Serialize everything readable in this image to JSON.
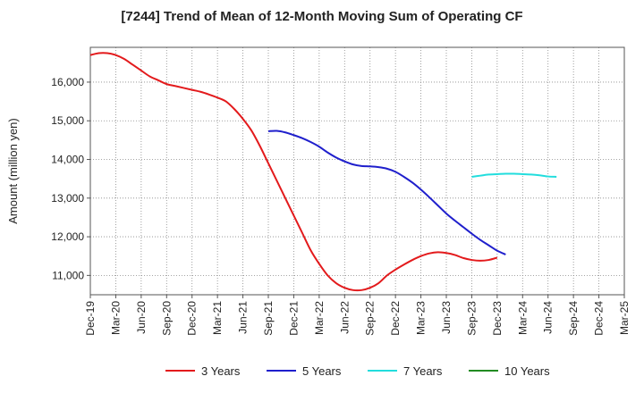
{
  "chart_data": {
    "type": "line",
    "title": "[7244]  Trend of Mean of 12-Month Moving Sum of Operating CF",
    "xlabel": "",
    "ylabel": "Amount (million yen)",
    "ylim": [
      10500,
      16900
    ],
    "yticks": [
      11000,
      12000,
      13000,
      14000,
      15000,
      16000
    ],
    "ytick_labels": [
      "11,000",
      "12,000",
      "13,000",
      "14,000",
      "15,000",
      "16,000"
    ],
    "xtick_labels": [
      "Dec-19",
      "Mar-20",
      "Jun-20",
      "Sep-20",
      "Dec-20",
      "Mar-21",
      "Jun-21",
      "Sep-21",
      "Dec-21",
      "Mar-22",
      "Jun-22",
      "Sep-22",
      "Dec-22",
      "Mar-23",
      "Jun-23",
      "Sep-23",
      "Dec-23",
      "Mar-24",
      "Jun-24",
      "Sep-24",
      "Dec-24",
      "Mar-25"
    ],
    "grid": true,
    "series": [
      {
        "name": "3 Years",
        "color": "#e31a1c",
        "start_index": 0,
        "values": [
          16700,
          16750,
          16750,
          16700,
          16600,
          16450,
          16300,
          16150,
          16050,
          15950,
          15900,
          15850,
          15800,
          15750,
          15680,
          15600,
          15500,
          15300,
          15050,
          14750,
          14350,
          13900,
          13450,
          13000,
          12550,
          12100,
          11650,
          11300,
          11000,
          10800,
          10680,
          10620,
          10620,
          10680,
          10800,
          11000,
          11150,
          11280,
          11400,
          11500,
          11570,
          11600,
          11580,
          11530,
          11450,
          11400,
          11380,
          11400,
          11460
        ]
      },
      {
        "name": "5 Years",
        "color": "#1f1fcc",
        "start_index": 21,
        "values": [
          14730,
          14740,
          14700,
          14630,
          14550,
          14450,
          14330,
          14180,
          14050,
          13950,
          13870,
          13830,
          13820,
          13800,
          13760,
          13680,
          13550,
          13400,
          13220,
          13020,
          12810,
          12600,
          12420,
          12250,
          12080,
          11920,
          11780,
          11640,
          11540
        ]
      },
      {
        "name": "7 Years",
        "color": "#22dddd",
        "start_index": 45,
        "values": [
          13550,
          13580,
          13610,
          13620,
          13630,
          13630,
          13620,
          13610,
          13590,
          13560,
          13550
        ]
      },
      {
        "name": "10 Years",
        "color": "#228b22",
        "start_index": 0,
        "values": []
      }
    ]
  }
}
